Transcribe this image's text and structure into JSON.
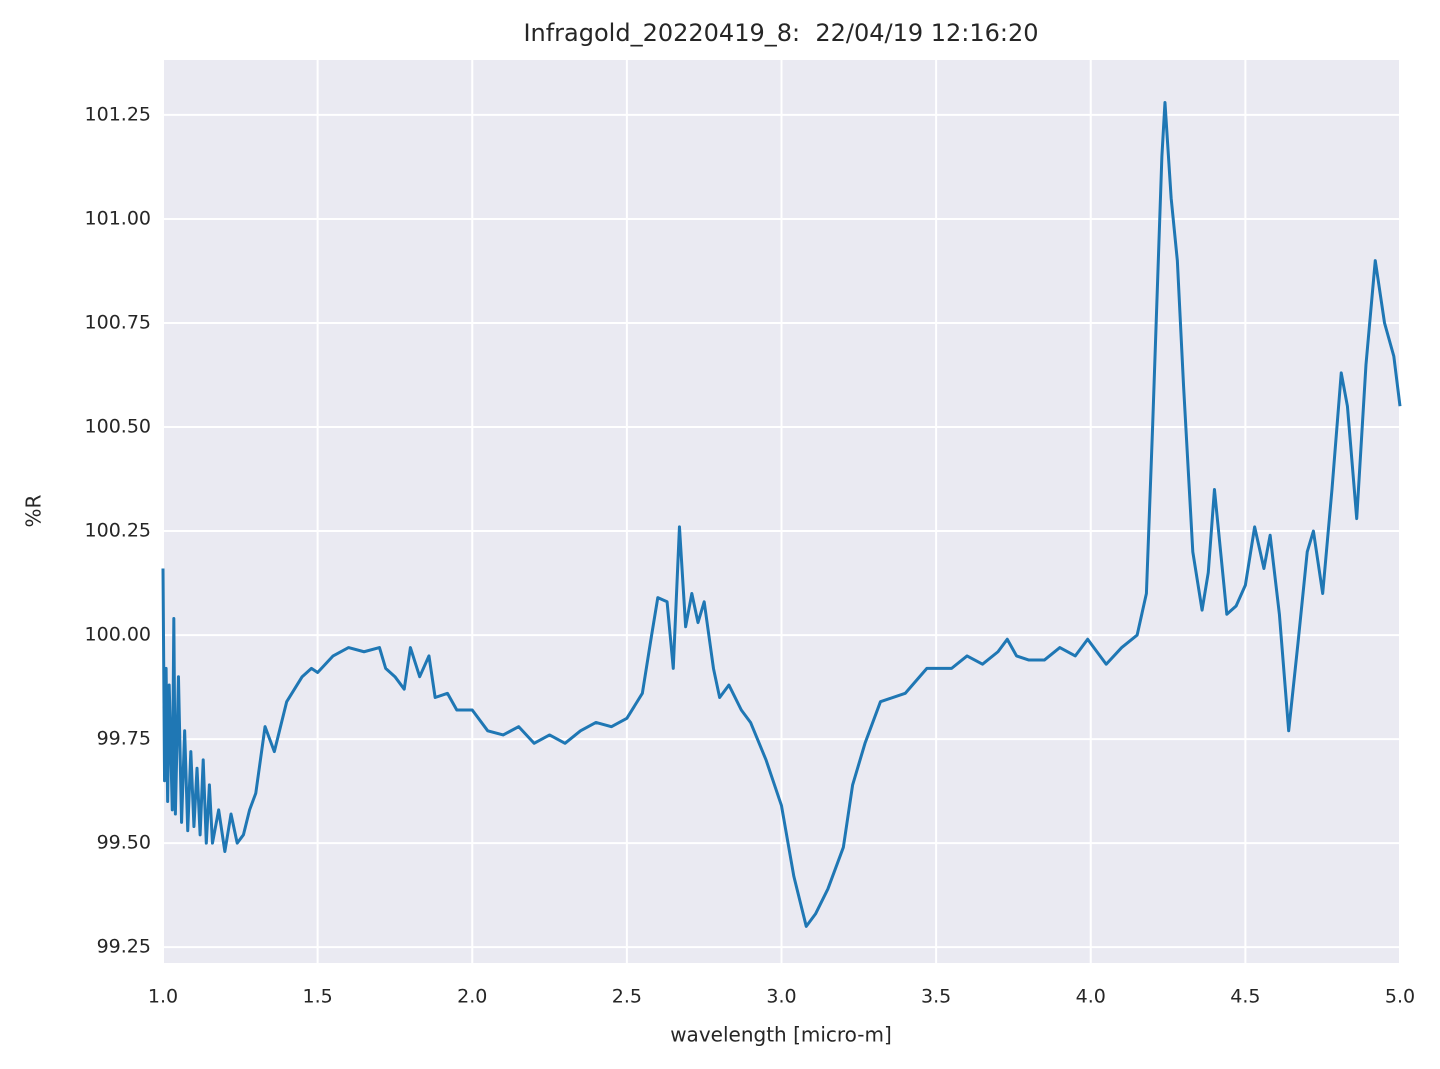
{
  "chart_data": {
    "type": "line",
    "title": "Infragold_20220419_8:  22/04/19 12:16:20",
    "x_label": "wavelength [micro-m]",
    "y_label": "%R",
    "color": "#1f77b4",
    "grid": true,
    "xlim": [
      1.0,
      5.0
    ],
    "ylim": [
      99.212,
      101.382
    ],
    "xticks": [
      {
        "value": 1.0,
        "label": "1.0"
      },
      1.5,
      {
        "value": 2.0,
        "label": "2.0"
      },
      2.5,
      {
        "value": 3.0,
        "label": "3.0"
      },
      3.5,
      {
        "value": 4.0,
        "label": "4.0"
      },
      4.5,
      {
        "value": 5.0,
        "label": "5.0"
      }
    ],
    "yticks": [
      99.25,
      {
        "value": 99.5,
        "label": "99.50"
      },
      99.75,
      {
        "value": 100.0,
        "label": "100.00"
      },
      100.25,
      {
        "value": 100.5,
        "label": "100.50"
      },
      100.75,
      {
        "value": 101.0,
        "label": "101.00"
      },
      101.25
    ],
    "x": [
      1.0,
      1.005,
      1.01,
      1.015,
      1.02,
      1.03,
      1.035,
      1.04,
      1.05,
      1.06,
      1.07,
      1.08,
      1.09,
      1.1,
      1.11,
      1.12,
      1.13,
      1.14,
      1.15,
      1.16,
      1.18,
      1.2,
      1.22,
      1.24,
      1.26,
      1.28,
      1.3,
      1.33,
      1.36,
      1.4,
      1.45,
      1.48,
      1.5,
      1.55,
      1.6,
      1.65,
      1.7,
      1.72,
      1.75,
      1.78,
      1.8,
      1.83,
      1.86,
      1.88,
      1.92,
      1.95,
      2.0,
      2.05,
      2.1,
      2.15,
      2.2,
      2.25,
      2.3,
      2.35,
      2.4,
      2.45,
      2.5,
      2.55,
      2.58,
      2.6,
      2.63,
      2.65,
      2.67,
      2.69,
      2.71,
      2.73,
      2.75,
      2.78,
      2.8,
      2.83,
      2.87,
      2.9,
      2.95,
      3.0,
      3.04,
      3.08,
      3.11,
      3.15,
      3.2,
      3.23,
      3.27,
      3.32,
      3.4,
      3.47,
      3.5,
      3.55,
      3.6,
      3.65,
      3.7,
      3.73,
      3.76,
      3.8,
      3.85,
      3.9,
      3.95,
      3.99,
      4.05,
      4.1,
      4.15,
      4.18,
      4.2,
      4.23,
      4.24,
      4.26,
      4.28,
      4.3,
      4.33,
      4.36,
      4.38,
      4.4,
      4.42,
      4.44,
      4.47,
      4.5,
      4.53,
      4.56,
      4.58,
      4.61,
      4.64,
      4.67,
      4.7,
      4.72,
      4.75,
      4.78,
      4.81,
      4.83,
      4.86,
      4.89,
      4.92,
      4.95,
      4.98,
      5.0
    ],
    "values": [
      100.16,
      99.65,
      99.92,
      99.6,
      99.88,
      99.58,
      100.04,
      99.57,
      99.9,
      99.55,
      99.77,
      99.53,
      99.72,
      99.54,
      99.68,
      99.52,
      99.7,
      99.5,
      99.64,
      99.5,
      99.58,
      99.48,
      99.57,
      99.5,
      99.52,
      99.58,
      99.62,
      99.78,
      99.72,
      99.84,
      99.9,
      99.92,
      99.91,
      99.95,
      99.97,
      99.96,
      99.97,
      99.92,
      99.9,
      99.87,
      99.97,
      99.9,
      99.95,
      99.85,
      99.86,
      99.82,
      99.82,
      99.77,
      99.76,
      99.78,
      99.74,
      99.76,
      99.74,
      99.77,
      99.79,
      99.78,
      99.8,
      99.86,
      100.0,
      100.09,
      100.08,
      99.92,
      100.26,
      100.02,
      100.1,
      100.03,
      100.08,
      99.92,
      99.85,
      99.88,
      99.82,
      99.79,
      99.7,
      99.59,
      99.42,
      99.3,
      99.33,
      99.39,
      99.49,
      99.64,
      99.74,
      99.84,
      99.86,
      99.92,
      99.92,
      99.92,
      99.95,
      99.93,
      99.96,
      99.99,
      99.95,
      99.94,
      99.94,
      99.97,
      99.95,
      99.99,
      99.93,
      99.97,
      100.0,
      100.1,
      100.5,
      101.15,
      101.28,
      101.05,
      100.9,
      100.6,
      100.2,
      100.06,
      100.15,
      100.35,
      100.2,
      100.05,
      100.07,
      100.12,
      100.26,
      100.16,
      100.24,
      100.05,
      99.77,
      99.98,
      100.2,
      100.25,
      100.1,
      100.35,
      100.63,
      100.55,
      100.28,
      100.65,
      100.9,
      100.75,
      100.67,
      100.55
    ]
  }
}
